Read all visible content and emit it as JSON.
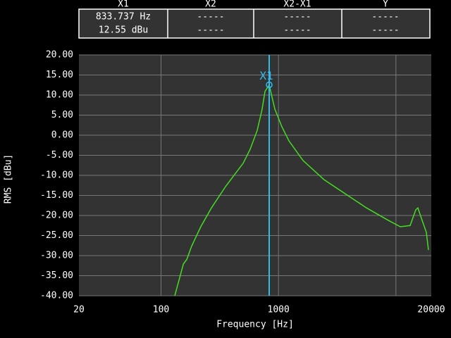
{
  "readout": {
    "columns": [
      "X1",
      "X2",
      "X2-X1",
      "Y"
    ],
    "rows": [
      [
        "833.737 Hz",
        "-----",
        "-----",
        "-----"
      ],
      [
        "12.55  dBu",
        "-----",
        "-----",
        "-----"
      ]
    ]
  },
  "chart_data": {
    "type": "line",
    "log_x": true,
    "x_label": "Frequency [Hz]",
    "y_label": "RMS [dBu]",
    "x": [
      131,
      155,
      166,
      182,
      218,
      269,
      354,
      500,
      574,
      659,
      726,
      767,
      834,
      931,
      1069,
      1228,
      1619,
      2449,
      3707,
      5611,
      8492,
      10890,
      13210,
      14750,
      15380,
      16480,
      18150,
      18920
    ],
    "values": [
      -40,
      -32.1,
      -30.9,
      -27.7,
      -22.8,
      -18.1,
      -12.8,
      -7.0,
      -3.5,
      1.2,
      6.5,
      10.9,
      12.55,
      6.5,
      2.1,
      -1.4,
      -6.3,
      -11.1,
      -14.6,
      -18.1,
      -21.1,
      -22.8,
      -22.5,
      -18.6,
      -18.1,
      -20.7,
      -24.2,
      -28.6
    ],
    "color": "#44dd22",
    "xlim": [
      20,
      20000
    ],
    "xticks": [
      20,
      100,
      1000,
      20000
    ],
    "x_grid": [
      100,
      1000,
      10000
    ],
    "ylim": [
      -40,
      20
    ],
    "yticks": [
      {
        "value": 20,
        "label": "20.00"
      },
      {
        "value": 15,
        "label": "15.00"
      },
      {
        "value": 10,
        "label": "10.00"
      },
      {
        "value": 5,
        "label": "5.00"
      },
      {
        "value": 0,
        "label": "0.00"
      },
      {
        "value": -5,
        "label": "-5.00"
      },
      {
        "value": -10,
        "label": "-10.00"
      },
      {
        "value": -15,
        "label": "-15.00"
      },
      {
        "value": -20,
        "label": "-20.00"
      },
      {
        "value": -25,
        "label": "-25.00"
      },
      {
        "value": -30,
        "label": "-30.00"
      },
      {
        "value": -35,
        "label": "-35.00"
      },
      {
        "value": -40,
        "label": "-40.00"
      }
    ],
    "grid": true,
    "cursor": {
      "label": "X1",
      "x": 833.737,
      "y": 12.55,
      "color": "#33bbee"
    }
  }
}
